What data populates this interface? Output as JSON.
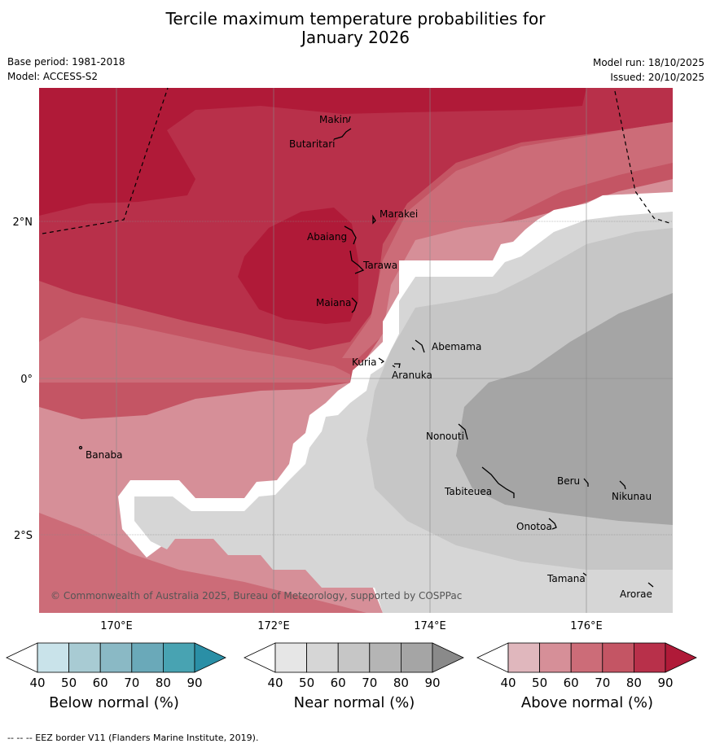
{
  "title_line1": "Tercile maximum temperature probabilities for",
  "title_line2": "January 2026",
  "base_period": "Base period: 1981-2018",
  "model": "Model: ACCESS-S2",
  "model_run": "Model run: 18/10/2025",
  "issued": "Issued: 20/10/2025",
  "copyright": "© Commonwealth of Australia 2025, Bureau of Meteorology, supported by COSPPac",
  "footnote": "--  --  -- EEZ border V11 (Flanders Marine Institute, 2019).",
  "lat_labels": [
    "2°N",
    "0°",
    "2°S"
  ],
  "lon_labels": [
    "170°E",
    "172°E",
    "174°E",
    "176°E"
  ],
  "islands": [
    "Makin",
    "Butaritari",
    "Marakei",
    "Abaiang",
    "Tarawa",
    "Maiana",
    "Abemama",
    "Kuria",
    "Aranuka",
    "Banaba",
    "Nonouti",
    "Beru",
    "Tabiteuea",
    "Nikunau",
    "Onotoa",
    "Tamana",
    "Arorae"
  ],
  "colorbars": [
    {
      "name": "below",
      "label": "Below normal (%)",
      "ticks": [
        "40",
        "50",
        "60",
        "70",
        "80",
        "90"
      ],
      "colors": [
        "#ffffff",
        "#c9e3ea",
        "#a8cbd3",
        "#8ab9c5",
        "#6aa9b9",
        "#48a3b2",
        "#2a8fa6"
      ]
    },
    {
      "name": "near",
      "label": "Near normal (%)",
      "ticks": [
        "40",
        "50",
        "60",
        "70",
        "80",
        "90"
      ],
      "colors": [
        "#ffffff",
        "#e6e6e6",
        "#d6d6d6",
        "#c6c6c6",
        "#b5b5b5",
        "#a5a5a5",
        "#8a8a8a"
      ]
    },
    {
      "name": "above",
      "label": "Above normal (%)",
      "ticks": [
        "40",
        "50",
        "60",
        "70",
        "80",
        "90"
      ],
      "colors": [
        "#ffffff",
        "#e0b7bd",
        "#d68f98",
        "#cc6c78",
        "#c45564",
        "#b8304a",
        "#b01a38"
      ]
    }
  ]
}
